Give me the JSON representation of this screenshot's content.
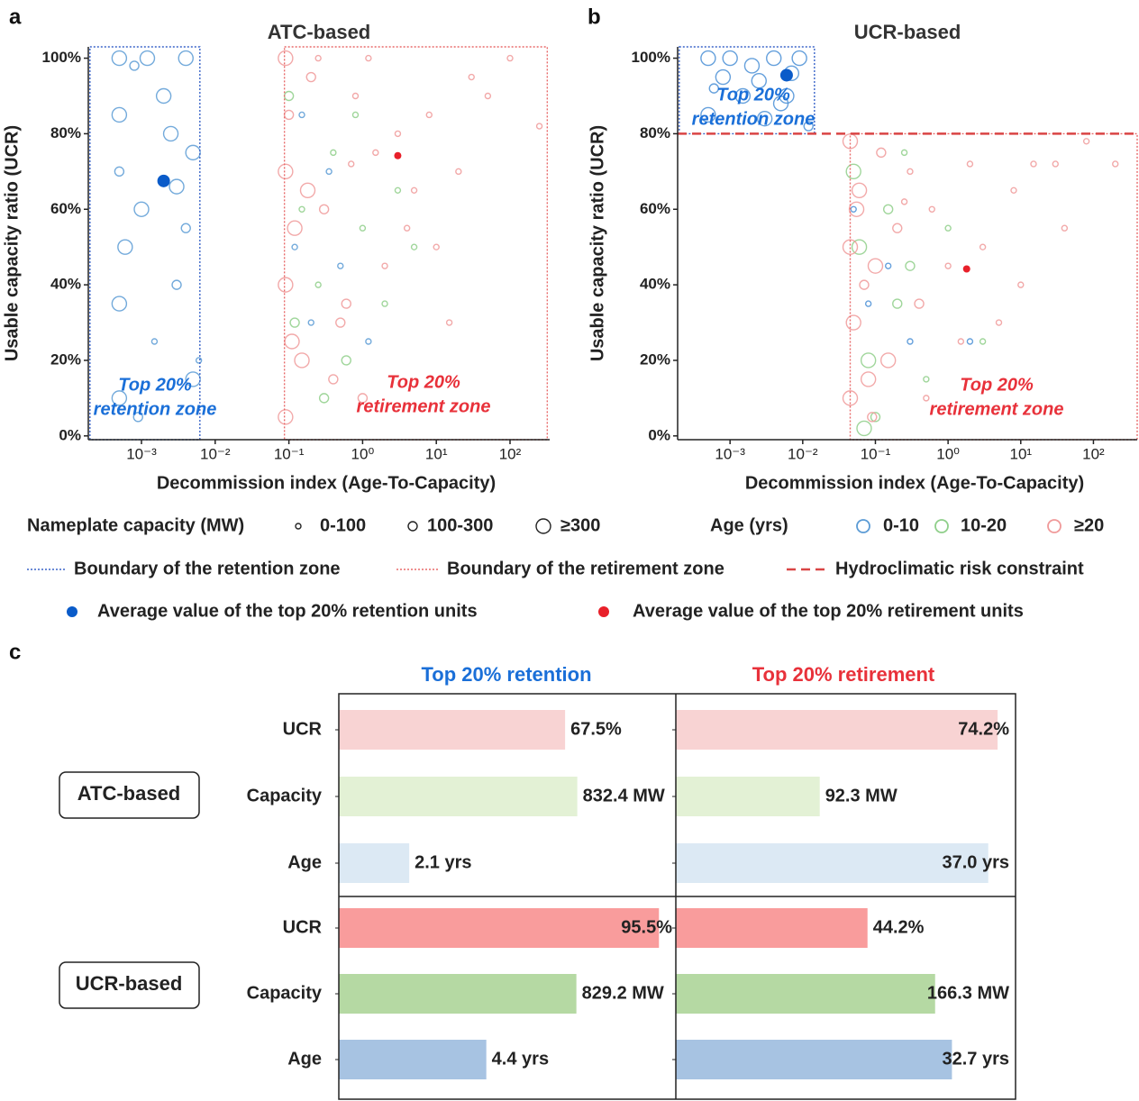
{
  "chart_data": [
    {
      "panel": "a",
      "type": "scatter",
      "title": "ATC-based",
      "x_label": "Decommission index (Age-To-Capacity)",
      "y_label": "Usable capacity ratio (UCR)",
      "log_x": true,
      "xlim": [
        0.00019,
        345
      ],
      "ylim": [
        -1,
        103
      ],
      "xticks": [
        {
          "value": 0.001,
          "label": "10⁻³"
        },
        {
          "value": 0.01,
          "label": "10⁻²"
        },
        {
          "value": 0.1,
          "label": "10⁻¹"
        },
        {
          "value": 1,
          "label": "10⁰"
        },
        {
          "value": 10,
          "label": "10¹"
        },
        {
          "value": 100,
          "label": "10²"
        }
      ],
      "yticks": [
        {
          "value": 0,
          "label": "0%"
        },
        {
          "value": 20,
          "label": "20%"
        },
        {
          "value": 40,
          "label": "40%"
        },
        {
          "value": 60,
          "label": "60%"
        },
        {
          "value": 80,
          "label": "80%"
        },
        {
          "value": 100,
          "label": "100%"
        }
      ],
      "series": [
        {
          "name": "0-10",
          "color": "#5b9bd5",
          "x": [
            0.0005,
            0.0005,
            0.0005,
            0.0005,
            0.0005,
            0.0008,
            0.001,
            0.0012,
            0.0015,
            0.002,
            0.0025,
            0.003,
            0.003,
            0.004,
            0.004,
            0.005,
            0.005,
            0.006,
            0.0006,
            0.0009,
            0.12,
            0.2,
            0.35,
            0.5,
            1.2,
            0.15
          ],
          "values": [
            100,
            85,
            70,
            35,
            10,
            98,
            60,
            100,
            25,
            90,
            80,
            66,
            40,
            100,
            55,
            75,
            15,
            20,
            50,
            5,
            50,
            30,
            70,
            45,
            25,
            85
          ],
          "sizes": [
            500,
            400,
            200,
            350,
            600,
            120,
            400,
            500,
            80,
            300,
            450,
            600,
            250,
            700,
            150,
            400,
            500,
            90,
            350,
            200,
            60,
            50,
            80,
            40,
            70,
            50
          ]
        },
        {
          "name": "10-20",
          "color": "#8fcf8a",
          "x": [
            0.1,
            0.15,
            0.25,
            0.4,
            0.6,
            1,
            2,
            5,
            0.3,
            0.8,
            3,
            0.12
          ],
          "values": [
            90,
            60,
            40,
            75,
            20,
            55,
            35,
            50,
            10,
            85,
            65,
            30
          ],
          "sizes": [
            150,
            80,
            60,
            90,
            120,
            70,
            50,
            40,
            200,
            60,
            30,
            100
          ]
        },
        {
          "name": "≥20",
          "color": "#f09a9a",
          "x": [
            0.09,
            0.09,
            0.09,
            0.09,
            0.1,
            0.12,
            0.15,
            0.2,
            0.3,
            0.5,
            0.8,
            1,
            1.5,
            2,
            3,
            5,
            8,
            10,
            20,
            50,
            100,
            250,
            0.4,
            0.6,
            0.18,
            0.25,
            1.2,
            4,
            15,
            30,
            0.11,
            0.7
          ],
          "values": [
            100,
            70,
            40,
            5,
            85,
            55,
            20,
            95,
            60,
            30,
            90,
            10,
            75,
            45,
            80,
            65,
            85,
            50,
            70,
            90,
            100,
            82,
            15,
            35,
            65,
            100,
            100,
            55,
            30,
            95,
            25,
            72
          ],
          "sizes": [
            400,
            600,
            350,
            500,
            200,
            450,
            300,
            150,
            250,
            120,
            80,
            100,
            60,
            50,
            40,
            30,
            20,
            40,
            30,
            20,
            10,
            15,
            250,
            180,
            400,
            90,
            60,
            40,
            20,
            15,
            500,
            70
          ]
        }
      ],
      "retention_zone": {
        "xlim": [
          0.0002,
          0.0062
        ],
        "ylim": [
          -1,
          103
        ],
        "color": "#3a64c8",
        "text": [
          "Top 20%",
          "retention zone"
        ]
      },
      "retirement_zone": {
        "xlim": [
          0.087,
          320
        ],
        "ylim": [
          -1,
          103
        ],
        "color": "#e86a6a",
        "text": [
          "Top 20%",
          "retirement zone"
        ]
      },
      "averages": [
        {
          "x": 0.002,
          "y": 67.5,
          "color": "#0a5bc9"
        },
        {
          "x": 3,
          "y": 74.2,
          "color": "#e8202a"
        }
      ]
    },
    {
      "panel": "b",
      "type": "scatter",
      "title": "UCR-based",
      "x_label": "Decommission index (Age-To-Capacity)",
      "y_label": "Usable capacity ratio (UCR)",
      "log_x": true,
      "xlim": [
        0.00019,
        400
      ],
      "ylim": [
        -1,
        103
      ],
      "xticks": [
        {
          "value": 0.001,
          "label": "10⁻³"
        },
        {
          "value": 0.01,
          "label": "10⁻²"
        },
        {
          "value": 0.1,
          "label": "10⁻¹"
        },
        {
          "value": 1,
          "label": "10⁰"
        },
        {
          "value": 10,
          "label": "10¹"
        },
        {
          "value": 100,
          "label": "10²"
        }
      ],
      "yticks": [
        {
          "value": 0,
          "label": "0%"
        },
        {
          "value": 20,
          "label": "20%"
        },
        {
          "value": 40,
          "label": "40%"
        },
        {
          "value": 60,
          "label": "60%"
        },
        {
          "value": 80,
          "label": "80%"
        },
        {
          "value": 100,
          "label": "100%"
        }
      ],
      "series": [
        {
          "name": "0-10",
          "color": "#4a8fd6",
          "x": [
            0.0005,
            0.0005,
            0.0008,
            0.001,
            0.0015,
            0.002,
            0.003,
            0.004,
            0.005,
            0.007,
            0.009,
            0.012,
            0.0006,
            0.0025,
            0.006,
            0.05,
            0.08,
            0.15,
            0.3,
            2
          ],
          "values": [
            100,
            85,
            95,
            100,
            90,
            98,
            84,
            100,
            88,
            96,
            100,
            82,
            92,
            94,
            90,
            60,
            35,
            45,
            25,
            25
          ],
          "sizes": [
            500,
            400,
            300,
            600,
            450,
            350,
            500,
            700,
            400,
            600,
            300,
            250,
            200,
            500,
            800,
            60,
            80,
            50,
            40,
            30
          ]
        },
        {
          "name": "10-20",
          "color": "#8fcf8a",
          "x": [
            0.05,
            0.06,
            0.08,
            0.1,
            0.15,
            0.2,
            0.3,
            0.5,
            1,
            3,
            0.07,
            0.25
          ],
          "values": [
            70,
            50,
            20,
            5,
            60,
            35,
            45,
            15,
            55,
            25,
            2,
            75
          ],
          "sizes": [
            300,
            500,
            400,
            200,
            150,
            120,
            100,
            80,
            60,
            40,
            600,
            90
          ]
        },
        {
          "name": "≥20",
          "color": "#f09a9a",
          "x": [
            0.045,
            0.045,
            0.045,
            0.05,
            0.06,
            0.07,
            0.09,
            0.12,
            0.15,
            0.2,
            0.3,
            0.4,
            0.6,
            1,
            1.5,
            2,
            3,
            5,
            8,
            15,
            30,
            80,
            200,
            0.08,
            0.1,
            0.25,
            0.5,
            10,
            40,
            0.055
          ],
          "values": [
            78,
            50,
            10,
            30,
            65,
            40,
            5,
            75,
            20,
            55,
            70,
            35,
            60,
            45,
            25,
            72,
            50,
            30,
            65,
            72,
            72,
            78,
            72,
            15,
            45,
            62,
            10,
            40,
            55,
            60
          ],
          "sizes": [
            400,
            600,
            500,
            300,
            350,
            250,
            200,
            150,
            300,
            120,
            90,
            100,
            80,
            60,
            50,
            40,
            30,
            20,
            15,
            10,
            10,
            15,
            10,
            600,
            450,
            80,
            70,
            20,
            10,
            500
          ]
        }
      ],
      "retention_zone": {
        "xlim": [
          0.0002,
          0.0145
        ],
        "ylim": [
          80,
          103
        ],
        "color": "#3a64c8",
        "text": [
          "Top 20%",
          "retention zone"
        ]
      },
      "retirement_zone": {
        "xlim": [
          0.045,
          400
        ],
        "ylim": [
          -1,
          80
        ],
        "color": "#e86a6a",
        "text": [
          "Top 20%",
          "retirement zone"
        ]
      },
      "constraint_y": 80,
      "constraint_color": "#d94545",
      "averages": [
        {
          "x": 0.006,
          "y": 95.5,
          "color": "#0a5bc9"
        },
        {
          "x": 1.8,
          "y": 44.2,
          "color": "#e8202a"
        }
      ]
    },
    {
      "panel": "c",
      "type": "bar",
      "groups": [
        "ATC-based",
        "UCR-based"
      ],
      "metrics": [
        "UCR",
        "Capacity",
        "Age"
      ],
      "bar_colors": [
        [
          "#f8d3d3",
          "#e3f1d5",
          "#dce9f4"
        ],
        [
          "#f99c9c",
          "#b5d9a3",
          "#a7c3e2"
        ]
      ],
      "series": [
        {
          "name": "Top 20% retention",
          "color": "#1a6fd8",
          "xlims": [
            [
              0,
              100
            ],
            [
              0,
              1170
            ],
            [
              0,
              10
            ]
          ],
          "values": [
            [
              67.5,
              832.4,
              2.1
            ],
            [
              95.5,
              829.2,
              4.4
            ]
          ],
          "value_labels": [
            [
              "67.5%",
              "832.4 MW",
              "2.1 yrs"
            ],
            [
              "95.5%",
              "829.2 MW",
              "4.4 yrs"
            ]
          ]
        },
        {
          "name": "Top 20% retirement",
          "color": "#e8313a",
          "xlims": [
            [
              0,
              77.3
            ],
            [
              0,
              215
            ],
            [
              0,
              39.7
            ]
          ],
          "values": [
            [
              74.2,
              92.3,
              37.0
            ],
            [
              44.2,
              166.3,
              32.7
            ]
          ],
          "value_labels": [
            [
              "74.2%",
              "92.3 MW",
              "37.0 yrs"
            ],
            [
              "44.2%",
              "166.3 MW",
              "32.7 yrs"
            ]
          ]
        }
      ]
    }
  ],
  "legend": {
    "size_title": "Nameplate capacity (MW)",
    "size_labels": [
      "0-100",
      "100-300",
      "≥300"
    ],
    "size_breaks": [
      100,
      300
    ],
    "age_title": "Age (yrs)",
    "lines": [
      "Boundary of the retention zone",
      "Boundary of the retirement zone",
      "Hydroclimatic risk constraint"
    ],
    "points": [
      "Average value of the top 20% retention units",
      "Average value of the top 20% retirement units"
    ]
  }
}
